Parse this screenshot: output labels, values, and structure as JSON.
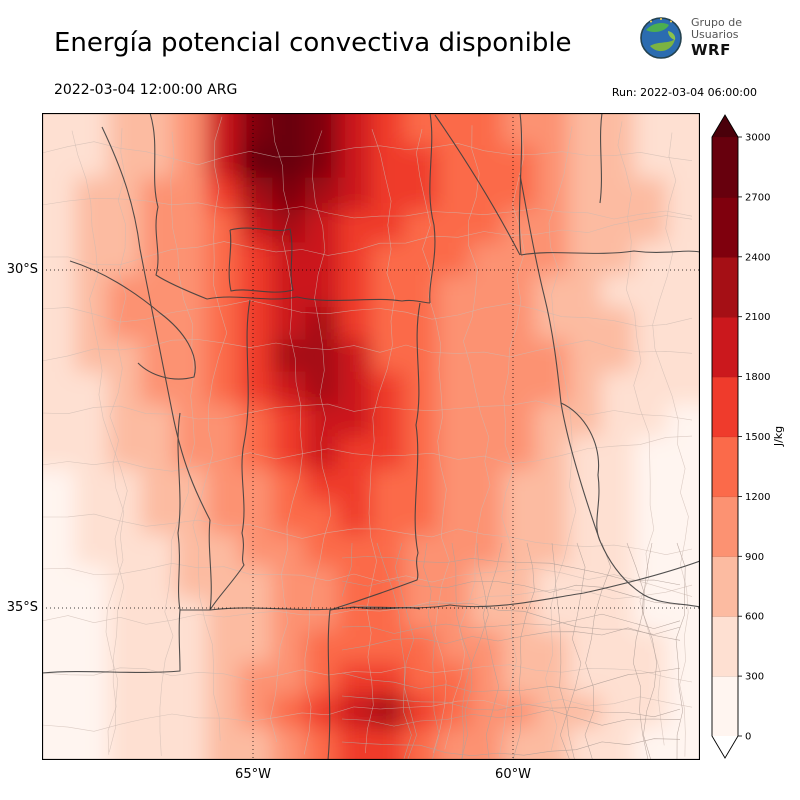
{
  "header": {
    "title": "Energía potencial convectiva disponible",
    "valid_time": "2022-03-04 12:00:00 ARG",
    "run_label": "Run: 2022-03-04 06:00:00",
    "logo": {
      "line1": "Grupo de",
      "line2": "Usuarios",
      "line3": "WRF"
    }
  },
  "chart_data": {
    "type": "heatmap",
    "variable": "CAPE — Energía potencial convectiva disponible",
    "units": "J/kg",
    "title": "Energía potencial convectiva disponible",
    "valid_time": "2022-03-04 12:00:00 ARG",
    "run": "2022-03-04 06:00:00",
    "x_ticks": [
      "65°W",
      "60°W"
    ],
    "y_ticks": [
      "30°S",
      "35°S"
    ],
    "grid_style": "dotted graticule at labeled meridians and parallels",
    "colorbar": {
      "label": "J/kg",
      "levels": [
        0,
        300,
        600,
        900,
        1200,
        1500,
        1800,
        2100,
        2400,
        2700,
        3000
      ],
      "colors": [
        "#fff5f0",
        "#fee0d2",
        "#fcbba1",
        "#fc9272",
        "#fb6a4a",
        "#ef3b2c",
        "#cb181d",
        "#a50f15",
        "#7f000d",
        "#67000d"
      ],
      "under_color": "#ffffff",
      "over_color": "#4a000a",
      "orientation": "vertical-right with extend arrows both ends"
    },
    "features": [
      {
        "region": "primary maximum, north-center near top edge of domain",
        "approx_value_j_per_kg": 2800
      },
      {
        "region": "elongated NW-SE band through center of domain toward bottom-center",
        "approx_value_j_per_kg": 1500
      },
      {
        "region": "secondary maximum near bottom-center of domain",
        "approx_value_j_per_kg": 2000
      },
      {
        "region": "minima along far eastern and western edges",
        "approx_value_j_per_kg": 100
      }
    ],
    "grid": {
      "rows": 20,
      "cols": 20,
      "order": "rows north-to-south, columns west-to-east, estimated band values",
      "values_j_per_kg": [
        [
          300,
          300,
          600,
          600,
          900,
          1800,
          2400,
          2700,
          2400,
          1800,
          1500,
          1200,
          1200,
          1200,
          900,
          900,
          600,
          600,
          300,
          300
        ],
        [
          300,
          300,
          600,
          600,
          900,
          1800,
          2700,
          2700,
          2400,
          1800,
          1500,
          1500,
          1200,
          1200,
          1200,
          900,
          600,
          600,
          300,
          300
        ],
        [
          300,
          600,
          600,
          900,
          900,
          1500,
          2100,
          2400,
          2100,
          1800,
          1500,
          1500,
          1200,
          1200,
          1200,
          900,
          600,
          600,
          600,
          300
        ],
        [
          300,
          600,
          600,
          900,
          900,
          1200,
          1800,
          2100,
          1800,
          1500,
          1500,
          1200,
          1200,
          1200,
          900,
          900,
          600,
          600,
          600,
          300
        ],
        [
          300,
          600,
          600,
          900,
          900,
          1200,
          1500,
          1800,
          1800,
          1500,
          1200,
          1200,
          1200,
          900,
          900,
          900,
          600,
          600,
          300,
          300
        ],
        [
          300,
          600,
          900,
          900,
          900,
          1200,
          1500,
          1800,
          1800,
          1500,
          1200,
          1200,
          900,
          900,
          900,
          600,
          600,
          300,
          300,
          300
        ],
        [
          300,
          600,
          900,
          900,
          900,
          1200,
          1500,
          1800,
          2100,
          1500,
          1200,
          1200,
          900,
          900,
          900,
          600,
          600,
          600,
          300,
          300
        ],
        [
          300,
          600,
          600,
          900,
          900,
          1200,
          1500,
          2100,
          2100,
          1800,
          1200,
          1200,
          900,
          900,
          900,
          900,
          600,
          600,
          300,
          300
        ],
        [
          300,
          300,
          600,
          900,
          900,
          1200,
          1500,
          1800,
          2100,
          1800,
          1500,
          1200,
          900,
          900,
          900,
          900,
          600,
          300,
          300,
          300
        ],
        [
          300,
          300,
          600,
          600,
          900,
          900,
          1200,
          1500,
          1800,
          1800,
          1500,
          1200,
          900,
          900,
          900,
          600,
          600,
          300,
          300,
          150
        ],
        [
          300,
          300,
          600,
          600,
          900,
          900,
          1200,
          1500,
          1800,
          1500,
          1500,
          1200,
          900,
          900,
          900,
          600,
          300,
          300,
          150,
          150
        ],
        [
          150,
          300,
          300,
          600,
          600,
          900,
          900,
          1200,
          1500,
          1500,
          1200,
          1200,
          900,
          900,
          600,
          600,
          300,
          300,
          150,
          150
        ],
        [
          150,
          300,
          300,
          600,
          600,
          900,
          900,
          1200,
          1200,
          1500,
          1200,
          1200,
          900,
          900,
          600,
          600,
          300,
          300,
          150,
          150
        ],
        [
          150,
          300,
          300,
          300,
          600,
          600,
          900,
          900,
          1200,
          1200,
          1200,
          900,
          900,
          900,
          600,
          600,
          300,
          300,
          150,
          150
        ],
        [
          150,
          150,
          300,
          300,
          600,
          600,
          600,
          900,
          900,
          1200,
          1200,
          900,
          900,
          600,
          600,
          300,
          300,
          300,
          150,
          150
        ],
        [
          150,
          150,
          300,
          300,
          300,
          600,
          600,
          900,
          900,
          1200,
          1200,
          900,
          900,
          600,
          600,
          300,
          300,
          300,
          150,
          150
        ],
        [
          150,
          150,
          300,
          300,
          300,
          600,
          600,
          900,
          1200,
          1200,
          1200,
          1200,
          900,
          900,
          600,
          600,
          300,
          300,
          300,
          150
        ],
        [
          150,
          150,
          300,
          300,
          300,
          600,
          900,
          900,
          1200,
          1500,
          1500,
          1200,
          1200,
          900,
          600,
          600,
          300,
          300,
          300,
          150
        ],
        [
          150,
          150,
          300,
          300,
          300,
          600,
          900,
          1200,
          1500,
          1800,
          2100,
          1500,
          1200,
          900,
          900,
          600,
          600,
          300,
          300,
          150
        ],
        [
          150,
          150,
          300,
          300,
          300,
          600,
          600,
          900,
          1200,
          1500,
          1500,
          1200,
          900,
          900,
          600,
          600,
          300,
          300,
          150,
          150
        ]
      ]
    }
  }
}
